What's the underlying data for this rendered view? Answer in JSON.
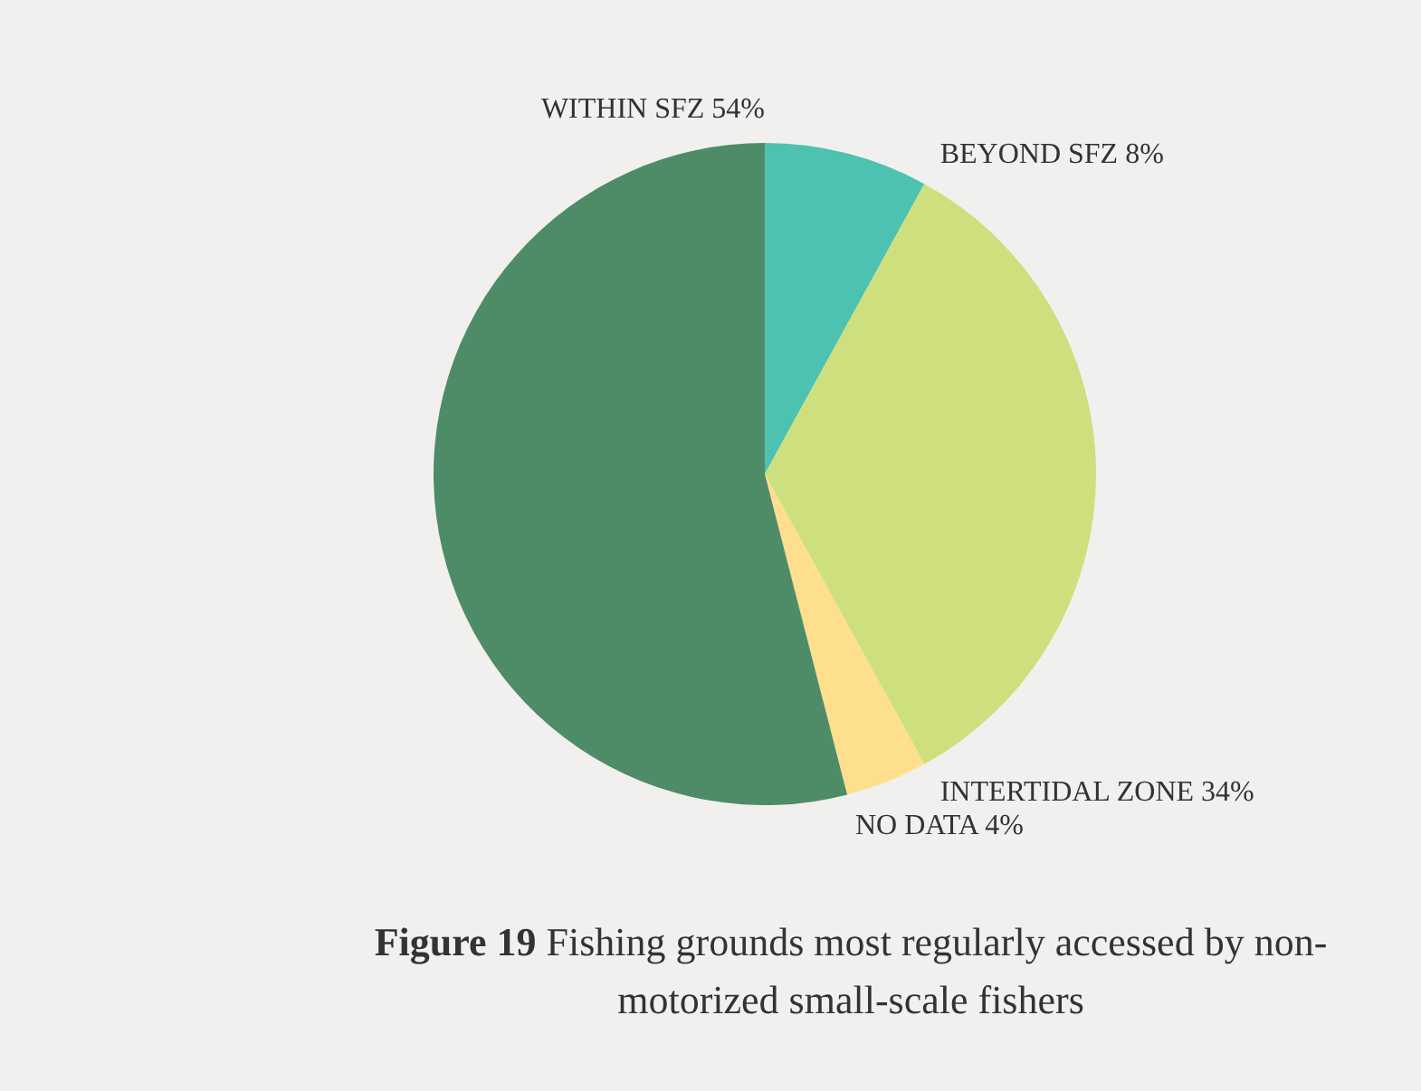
{
  "chart_data": {
    "type": "pie",
    "title": "Figure 19",
    "subtitle": "Fishing grounds most regularly accessed by non-motorized small-scale fishers",
    "categories": [
      "BEYOND SFZ",
      "INTERTIDAL ZONE",
      "NO DATA",
      "WITHIN SFZ"
    ],
    "values": [
      8,
      34,
      4,
      54
    ],
    "value_labels": [
      "8%",
      "34%",
      "4%",
      "54%"
    ],
    "colors": [
      "#4dc2b0",
      "#cee07e",
      "#fddf8e",
      "#4e8c67"
    ],
    "legend": false
  }
}
